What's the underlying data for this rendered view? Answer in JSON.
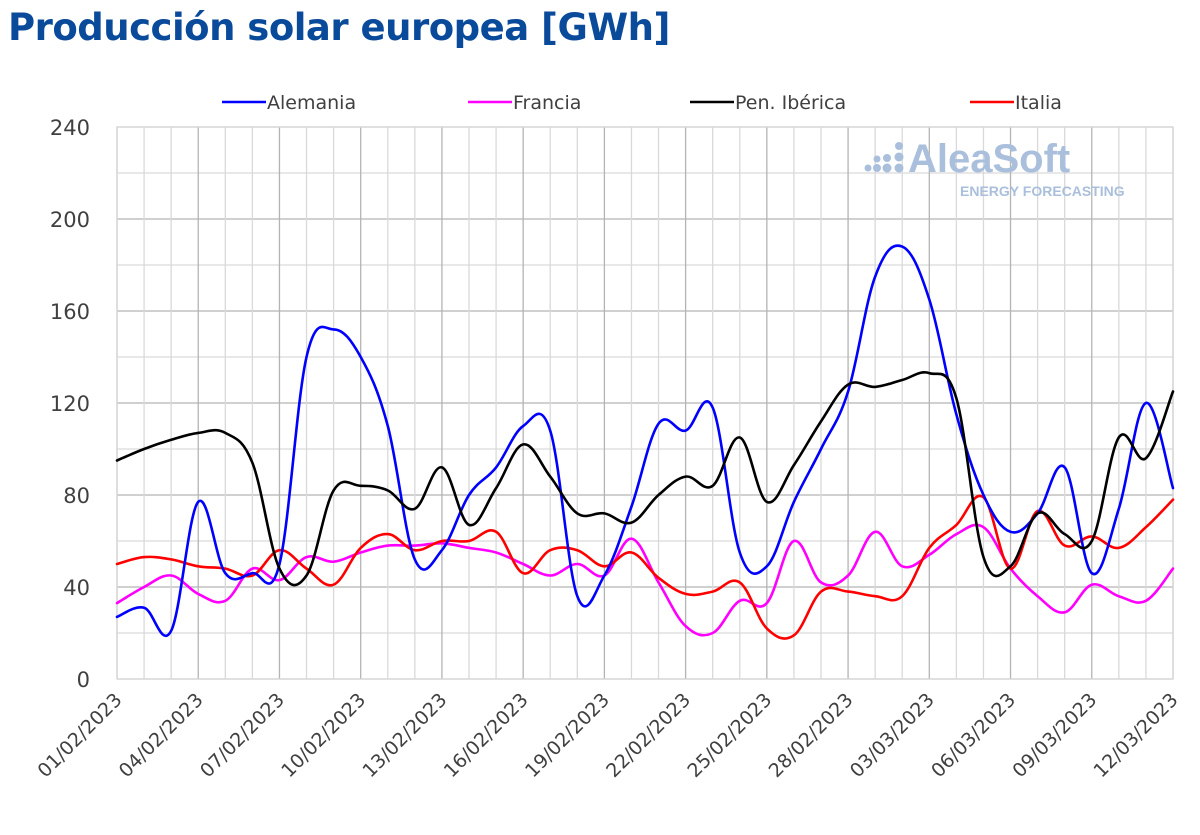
{
  "chart_data": {
    "type": "line",
    "title": "Producción solar europea [GWh]",
    "xlabel": "",
    "ylabel": "",
    "ylim": [
      0,
      240
    ],
    "yticks": [
      0,
      40,
      80,
      120,
      160,
      200,
      240
    ],
    "grid": true,
    "legend_position": "top-center",
    "watermark": {
      "brand": "AleaSoft",
      "tagline": "ENERGY FORECASTING"
    },
    "x": [
      "01/02/2023",
      "02/02/2023",
      "03/02/2023",
      "04/02/2023",
      "05/02/2023",
      "06/02/2023",
      "07/02/2023",
      "08/02/2023",
      "09/02/2023",
      "10/02/2023",
      "11/02/2023",
      "12/02/2023",
      "13/02/2023",
      "14/02/2023",
      "15/02/2023",
      "16/02/2023",
      "17/02/2023",
      "18/02/2023",
      "19/02/2023",
      "20/02/2023",
      "21/02/2023",
      "22/02/2023",
      "23/02/2023",
      "24/02/2023",
      "25/02/2023",
      "26/02/2023",
      "27/02/2023",
      "28/02/2023",
      "01/03/2023",
      "02/03/2023",
      "03/03/2023",
      "04/03/2023",
      "05/03/2023",
      "06/03/2023",
      "07/03/2023",
      "08/03/2023",
      "09/03/2023",
      "10/03/2023",
      "11/03/2023",
      "12/03/2023"
    ],
    "xtick_labels": [
      "01/02/2023",
      "04/02/2023",
      "07/02/2023",
      "10/02/2023",
      "13/02/2023",
      "16/02/2023",
      "19/02/2023",
      "22/02/2023",
      "25/02/2023",
      "28/02/2023",
      "03/03/2023",
      "06/03/2023",
      "09/03/2023",
      "12/03/2023"
    ],
    "series": [
      {
        "name": "Alemania",
        "color": "#0000ff",
        "values": [
          27,
          31,
          21,
          77,
          46,
          46,
          50,
          140,
          152,
          140,
          110,
          52,
          56,
          80,
          92,
          110,
          108,
          36,
          45,
          75,
          111,
          108,
          118,
          55,
          49,
          77,
          100,
          125,
          175,
          188,
          165,
          115,
          80,
          64,
          72,
          92,
          46,
          74,
          120,
          83
        ]
      },
      {
        "name": "Francia",
        "color": "#ff00ff",
        "values": [
          33,
          40,
          45,
          37,
          34,
          48,
          43,
          53,
          51,
          55,
          58,
          58,
          59,
          57,
          55,
          50,
          45,
          50,
          45,
          61,
          42,
          23,
          20,
          34,
          33,
          60,
          42,
          45,
          64,
          49,
          54,
          63,
          66,
          48,
          36,
          29,
          41,
          36,
          34,
          48
        ]
      },
      {
        "name": "Pen. Ibérica",
        "color": "#000000",
        "values": [
          95,
          100,
          104,
          107,
          107,
          94,
          48,
          45,
          82,
          84,
          82,
          74,
          92,
          67,
          83,
          102,
          88,
          72,
          72,
          68,
          80,
          88,
          84,
          105,
          77,
          93,
          112,
          128,
          127,
          130,
          133,
          122,
          53,
          49,
          72,
          63,
          60,
          105,
          96,
          125
        ]
      },
      {
        "name": "Italia",
        "color": "#ff0000",
        "values": [
          50,
          53,
          52,
          49,
          48,
          45,
          56,
          48,
          41,
          57,
          63,
          56,
          60,
          60,
          64,
          46,
          56,
          56,
          49,
          55,
          44,
          37,
          38,
          42,
          22,
          19,
          38,
          38,
          36,
          36,
          57,
          67,
          79,
          48,
          73,
          58,
          62,
          57,
          66,
          78
        ]
      }
    ]
  }
}
